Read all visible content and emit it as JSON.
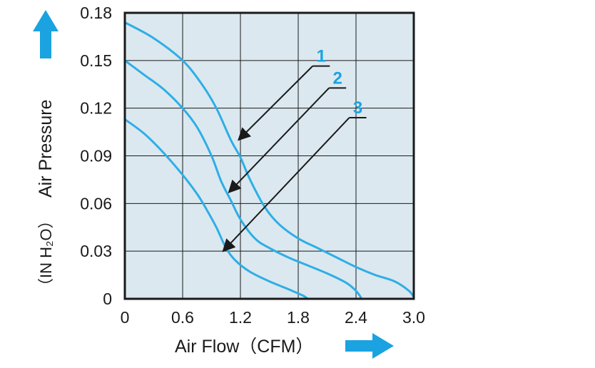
{
  "chart_data": {
    "type": "line",
    "xlabel": "Air Flow（CFM）",
    "ylabel_unit": "（IN H₂O）",
    "ylabel": "Air Pressure",
    "xlim": [
      0,
      3.0
    ],
    "ylim": [
      0,
      0.18
    ],
    "x_ticks": [
      "0",
      "0.6",
      "1.2",
      "1.8",
      "2.4",
      "3.0"
    ],
    "x_tick_values": [
      0,
      0.6,
      1.2,
      1.8,
      2.4,
      3.0
    ],
    "y_ticks": [
      "0",
      "0.03",
      "0.06",
      "0.09",
      "0.12",
      "0.15",
      "0.18"
    ],
    "y_tick_values": [
      0,
      0.03,
      0.06,
      0.09,
      0.12,
      0.15,
      0.18
    ],
    "grid": true,
    "colors": {
      "curve": "#2eaee6",
      "label": "#1aa3e0",
      "arrow_icon": "#1aa3e0",
      "plot_bg": "#dbe8ef",
      "grid": "#1a1a1a"
    },
    "icons": [
      "up-arrow-icon",
      "right-arrow-icon"
    ],
    "series": [
      {
        "name": "1",
        "x": [
          0,
          0.3,
          0.6,
          0.8,
          0.95,
          1.1,
          1.2,
          1.3,
          1.45,
          1.6,
          1.8,
          2.0,
          2.2,
          2.4,
          2.6,
          2.8,
          2.95,
          3.0
        ],
        "y": [
          0.174,
          0.164,
          0.15,
          0.135,
          0.12,
          0.1,
          0.089,
          0.075,
          0.058,
          0.047,
          0.038,
          0.032,
          0.026,
          0.02,
          0.015,
          0.011,
          0.005,
          0.001
        ]
      },
      {
        "name": "2",
        "x": [
          0,
          0.2,
          0.4,
          0.6,
          0.75,
          0.9,
          1.0,
          1.1,
          1.2,
          1.35,
          1.5,
          1.7,
          1.9,
          2.1,
          2.3,
          2.4,
          2.45
        ],
        "y": [
          0.15,
          0.141,
          0.132,
          0.12,
          0.108,
          0.09,
          0.074,
          0.062,
          0.05,
          0.038,
          0.032,
          0.026,
          0.021,
          0.016,
          0.01,
          0.005,
          0.001
        ]
      },
      {
        "name": "3",
        "x": [
          0,
          0.2,
          0.4,
          0.6,
          0.75,
          0.85,
          0.95,
          1.05,
          1.15,
          1.3,
          1.5,
          1.7,
          1.85,
          1.9
        ],
        "y": [
          0.113,
          0.104,
          0.092,
          0.078,
          0.066,
          0.056,
          0.045,
          0.032,
          0.024,
          0.017,
          0.011,
          0.006,
          0.002,
          0.0
        ]
      }
    ],
    "annotations": [
      {
        "label": "1",
        "series": "1",
        "target": [
          1.18,
          0.1
        ],
        "leader_start": [
          1.95,
          0.1465
        ]
      },
      {
        "label": "2",
        "series": "2",
        "target": [
          1.08,
          0.067
        ],
        "leader_start": [
          2.12,
          0.1327
        ]
      },
      {
        "label": "3",
        "series": "3",
        "target": [
          1.02,
          0.03
        ],
        "leader_start": [
          2.33,
          0.114
        ]
      }
    ]
  }
}
